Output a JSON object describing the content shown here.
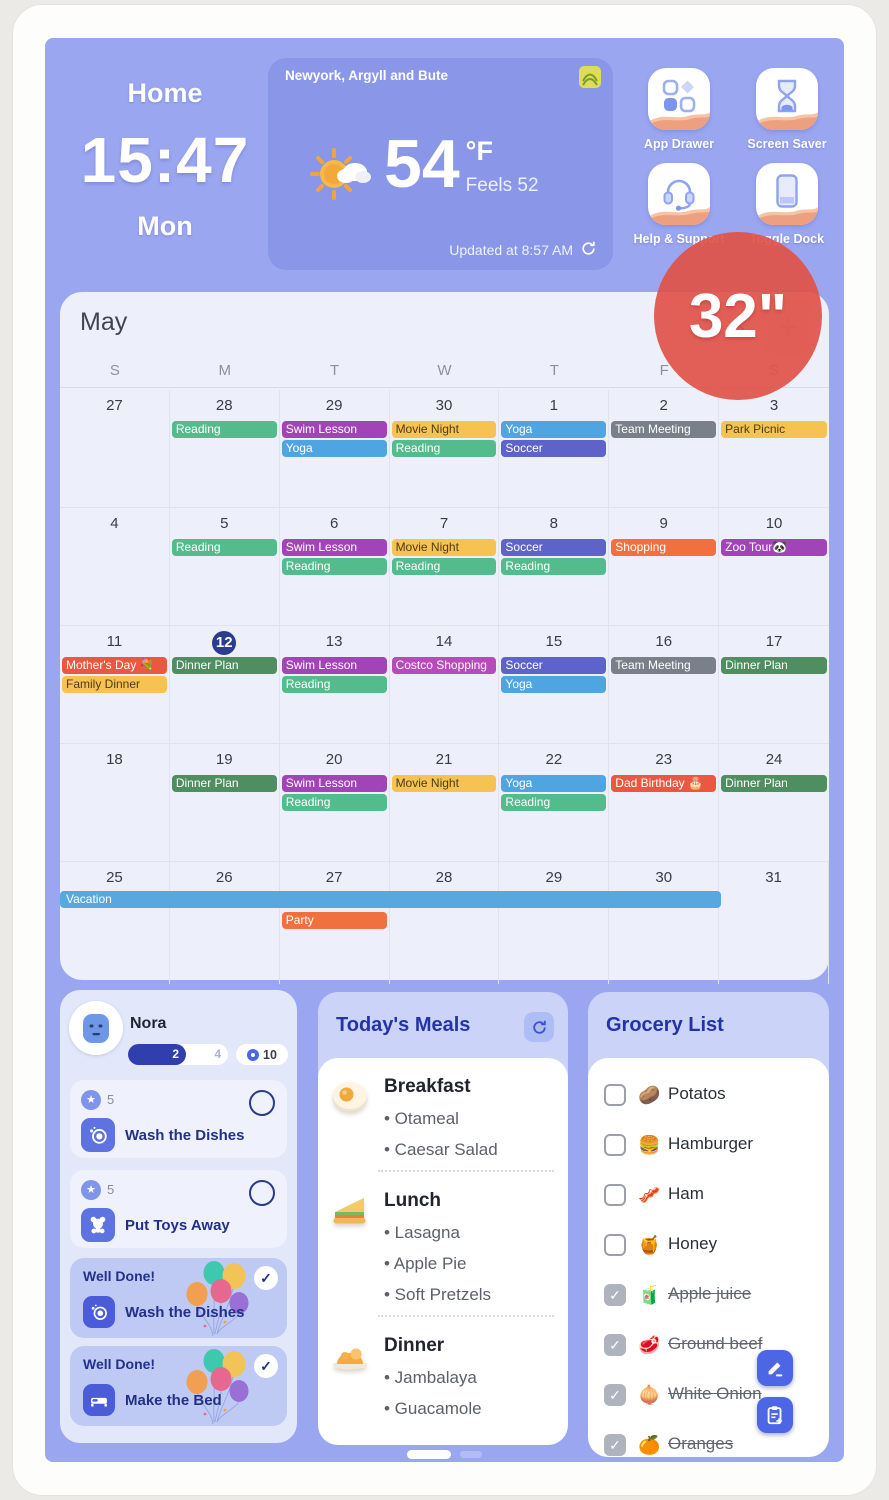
{
  "badge": {
    "label": "32\""
  },
  "clock": {
    "home": "Home",
    "time": "15:47",
    "day": "Mon"
  },
  "weather": {
    "location": "Newyork, Argyll and Bute",
    "temp": "54",
    "unit": "°F",
    "feels_like": "Feels 52",
    "updated": "Updated at 8:57 AM"
  },
  "apps": [
    {
      "label": "App Drawer",
      "icon": "app-drawer"
    },
    {
      "label": "Screen Saver",
      "icon": "screen-saver"
    },
    {
      "label": "Help & Support",
      "icon": "help-support"
    },
    {
      "label": "Toggle Dock",
      "icon": "toggle-dock"
    }
  ],
  "calendar": {
    "month": "May",
    "nav": {
      "prev": "‹",
      "next": "›",
      "add": "+"
    },
    "day_headers": [
      "S",
      "M",
      "T",
      "W",
      "T",
      "F",
      "S"
    ],
    "event_colors": {
      "green": "#54BB8C",
      "darkgreen": "#4E8E60",
      "purple": "#A343B8",
      "magenta": "#B54CB8",
      "amber": "#F6C353",
      "blue": "#4FA4E2",
      "indigo": "#5D63C8",
      "gray": "#798089",
      "orange": "#F1703F",
      "red": "#EB5740",
      "skyblue": "#58A8DF"
    },
    "weeks": [
      [
        {
          "day": "27",
          "events": []
        },
        {
          "day": "28",
          "events": [
            {
              "label": "Reading",
              "color": "green"
            }
          ]
        },
        {
          "day": "29",
          "events": [
            {
              "label": "Swim Lesson",
              "color": "purple"
            },
            {
              "label": "Yoga",
              "color": "blue"
            }
          ]
        },
        {
          "day": "30",
          "events": [
            {
              "label": "Movie Night",
              "color": "amber"
            },
            {
              "label": "Reading",
              "color": "green"
            }
          ]
        },
        {
          "day": "1",
          "events": [
            {
              "label": "Yoga",
              "color": "blue"
            },
            {
              "label": "Soccer",
              "color": "indigo"
            }
          ]
        },
        {
          "day": "2",
          "events": [
            {
              "label": "Team Meeting",
              "color": "gray"
            }
          ]
        },
        {
          "day": "3",
          "events": [
            {
              "label": "Park Picnic",
              "color": "amber"
            }
          ]
        }
      ],
      [
        {
          "day": "4",
          "events": []
        },
        {
          "day": "5",
          "events": [
            {
              "label": "Reading",
              "color": "green"
            }
          ]
        },
        {
          "day": "6",
          "events": [
            {
              "label": "Swim Lesson",
              "color": "purple"
            },
            {
              "label": "Reading",
              "color": "green"
            }
          ]
        },
        {
          "day": "7",
          "events": [
            {
              "label": "Movie Night",
              "color": "amber"
            },
            {
              "label": "Reading",
              "color": "green"
            }
          ]
        },
        {
          "day": "8",
          "events": [
            {
              "label": "Soccer",
              "color": "indigo"
            },
            {
              "label": "Reading",
              "color": "green"
            }
          ]
        },
        {
          "day": "9",
          "events": [
            {
              "label": "Shopping",
              "color": "orange"
            }
          ]
        },
        {
          "day": "10",
          "events": [
            {
              "label": "Zoo Tour🐼",
              "color": "purple"
            }
          ]
        }
      ],
      [
        {
          "day": "11",
          "events": [
            {
              "label": "Mother's Day 💐",
              "color": "red"
            },
            {
              "label": "Family Dinner",
              "color": "amber"
            }
          ]
        },
        {
          "day": "12",
          "today": true,
          "events": [
            {
              "label": "Dinner Plan",
              "color": "darkgreen"
            }
          ]
        },
        {
          "day": "13",
          "events": [
            {
              "label": "Swim Lesson",
              "color": "purple"
            },
            {
              "label": "Reading",
              "color": "green"
            }
          ]
        },
        {
          "day": "14",
          "events": [
            {
              "label": "Costco Shopping",
              "color": "magenta"
            }
          ]
        },
        {
          "day": "15",
          "events": [
            {
              "label": "Soccer",
              "color": "indigo"
            },
            {
              "label": "Yoga",
              "color": "blue"
            }
          ]
        },
        {
          "day": "16",
          "events": [
            {
              "label": "Team Meeting",
              "color": "gray"
            }
          ]
        },
        {
          "day": "17",
          "events": [
            {
              "label": "Dinner Plan",
              "color": "darkgreen"
            }
          ]
        }
      ],
      [
        {
          "day": "18",
          "events": []
        },
        {
          "day": "19",
          "events": [
            {
              "label": "Dinner Plan",
              "color": "darkgreen"
            }
          ]
        },
        {
          "day": "20",
          "events": [
            {
              "label": "Swim Lesson",
              "color": "purple"
            },
            {
              "label": "Reading",
              "color": "green"
            }
          ]
        },
        {
          "day": "21",
          "events": [
            {
              "label": "Movie Night",
              "color": "amber"
            }
          ]
        },
        {
          "day": "22",
          "events": [
            {
              "label": "Yoga",
              "color": "blue"
            },
            {
              "label": "Reading",
              "color": "green"
            }
          ]
        },
        {
          "day": "23",
          "events": [
            {
              "label": "Dad Birthday 🎂",
              "color": "red"
            }
          ]
        },
        {
          "day": "24",
          "events": [
            {
              "label": "Dinner Plan",
              "color": "darkgreen"
            }
          ]
        }
      ],
      [
        {
          "day": "25",
          "events": []
        },
        {
          "day": "26",
          "events": []
        },
        {
          "day": "27",
          "spacer": 1,
          "events": [
            {
              "label": "Party",
              "color": "orange"
            }
          ]
        },
        {
          "day": "28",
          "events": []
        },
        {
          "day": "29",
          "events": []
        },
        {
          "day": "30",
          "events": []
        },
        {
          "day": "31",
          "events": []
        }
      ]
    ],
    "multi_day_event": {
      "label": "Vacation",
      "color": "skyblue",
      "week_index": 4,
      "start_col": 0,
      "span": 6
    }
  },
  "chore_panel": {
    "name": "Nora",
    "progress": {
      "done": "2",
      "total": "4"
    },
    "points": "10",
    "tasks": [
      {
        "stars": "5",
        "icon": "dish",
        "label": "Wash the Dishes"
      },
      {
        "stars": "5",
        "icon": "teddy",
        "label": "Put Toys Away"
      }
    ],
    "completed": [
      {
        "title": "Well Done!",
        "icon": "dish",
        "label": "Wash the Dishes"
      },
      {
        "title": "Well Done!",
        "icon": "bed",
        "label": "Make the Bed"
      }
    ]
  },
  "meals": {
    "title": "Today's Meals",
    "sections": [
      {
        "name": "Breakfast",
        "icon": "egg",
        "items": [
          "Otameal",
          "Caesar Salad"
        ]
      },
      {
        "name": "Lunch",
        "icon": "sandwich",
        "items": [
          "Lasagna",
          "Apple Pie",
          "Soft Pretzels"
        ]
      },
      {
        "name": "Dinner",
        "icon": "plate",
        "items": [
          "Jambalaya",
          "Guacamole"
        ]
      }
    ]
  },
  "grocery": {
    "title": "Grocery List",
    "items": [
      {
        "label": "Potatos",
        "emoji": "🥔",
        "checked": false
      },
      {
        "label": "Hamburger",
        "emoji": "🍔",
        "checked": false
      },
      {
        "label": "Ham",
        "emoji": "🥓",
        "checked": false
      },
      {
        "label": "Honey",
        "emoji": "🍯",
        "checked": false
      },
      {
        "label": "Apple juice",
        "emoji": "🧃",
        "checked": true
      },
      {
        "label": "Ground beef",
        "emoji": "🥩",
        "checked": true
      },
      {
        "label": "White Onion",
        "emoji": "🧅",
        "checked": true
      },
      {
        "label": "Oranges",
        "emoji": "🍊",
        "checked": true
      }
    ]
  },
  "theme": {
    "screen_bg": "#9BA6F1",
    "weather_card_bg": "#8A96E8",
    "calendar_bg": "#EDF0FB",
    "panel_bg": "#E2E8FA",
    "panel_header_bg": "#CBD4F8",
    "accent_blue": "#4C66E6",
    "navy_text": "#223089",
    "badge_red": "#DF524ated"
  }
}
